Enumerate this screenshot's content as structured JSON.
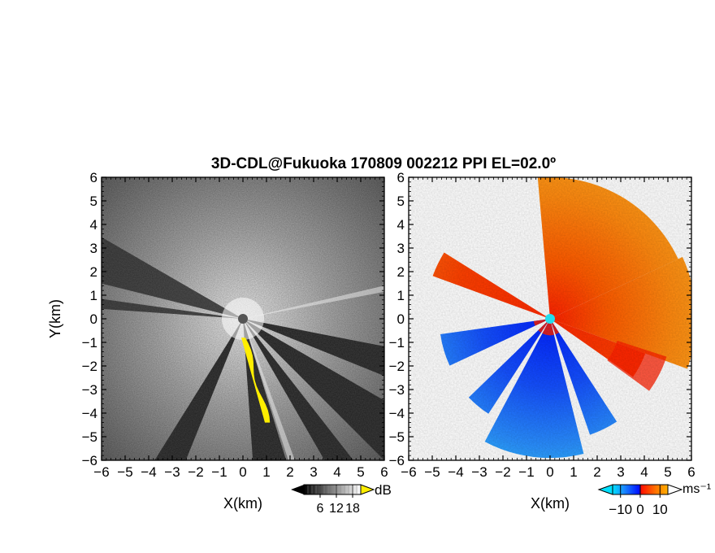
{
  "title": "3D-CDL@Fukuoka 170809 002212 PPI EL=02.0º",
  "colors": {
    "background": "#ffffff",
    "snr_dark": "#1e1e1e",
    "snr_bright": "#f0f0f0",
    "snr_flag": "#ffee00",
    "vel_neg_far": "#00c8ff",
    "vel_neg": "#1e64ff",
    "vel_neg_near": "#0028ff",
    "vel_pos_near": "#ff2000",
    "vel_pos": "#ff6400",
    "vel_pos_far": "#ffb400",
    "origin_snr": "#555555",
    "origin_vel": "#22ddee"
  },
  "chart_data": [
    {
      "type": "heatmap",
      "panel": "left",
      "field": "signal-to-noise ratio",
      "xlabel": "X(km)",
      "ylabel": "Y(km)",
      "xlim": [
        -6,
        6
      ],
      "ylim": [
        -6,
        6
      ],
      "xticks": [
        "−6",
        "−5",
        "−4",
        "−3",
        "−2",
        "−1",
        "0",
        "1",
        "2",
        "3",
        "4",
        "5",
        "6"
      ],
      "yticks": [
        "6",
        "5",
        "4",
        "3",
        "2",
        "1",
        "0",
        "−1",
        "−2",
        "−3",
        "−4",
        "−5",
        "−6"
      ],
      "colorbar": {
        "unit": "dB",
        "ticks": [
          "6",
          "12",
          "18"
        ],
        "range": [
          0,
          21
        ]
      },
      "blocked_sectors_deg": [
        [
          -86,
          -73
        ],
        [
          -60,
          -52
        ],
        [
          -45,
          -30
        ],
        [
          -122,
          -112
        ],
        [
          -22,
          -11
        ]
      ],
      "bright_streaks_deg": [
        12,
        -71
      ],
      "flagged_edge": {
        "color": "yellow",
        "from_x_km": 0.0,
        "from_y_km": -0.8,
        "to_x_km": 1.0,
        "to_y_km": -4.4
      }
    },
    {
      "type": "heatmap",
      "panel": "right",
      "field": "radial velocity",
      "xlabel": "X(km)",
      "ylabel": "",
      "xlim": [
        -6,
        6
      ],
      "ylim": [
        -6,
        6
      ],
      "xticks": [
        "−6",
        "−5",
        "−4",
        "−3",
        "−2",
        "−1",
        "0",
        "1",
        "2",
        "3",
        "4",
        "5",
        "6"
      ],
      "yticks": [
        "6",
        "5",
        "4",
        "3",
        "2",
        "1",
        "0",
        "−1",
        "−2",
        "−3",
        "−4",
        "−5",
        "−6"
      ],
      "colorbar": {
        "unit": "ms⁻¹",
        "ticks": [
          "−10",
          "0",
          "10"
        ],
        "range": [
          -14,
          14
        ]
      },
      "sectors": [
        {
          "az_from": -5,
          "az_to": 65,
          "max_range_km": 6.0,
          "velocity": "positive"
        },
        {
          "az_from": 65,
          "az_to": 110,
          "max_range_km": 6.2,
          "velocity": "positive"
        },
        {
          "az_from": 110,
          "az_to": 125,
          "max_range_km": 4.3,
          "velocity": "mixed"
        },
        {
          "az_from": 147,
          "az_to": 161,
          "max_range_km": 5.2,
          "velocity": "negative"
        },
        {
          "az_from": 166,
          "az_to": 208,
          "max_range_km": 5.9,
          "velocity": "negative"
        },
        {
          "az_from": 213,
          "az_to": 226,
          "max_range_km": 4.8,
          "velocity": "negative"
        },
        {
          "az_from": 245,
          "az_to": 262,
          "max_range_km": 4.7,
          "velocity": "negative"
        },
        {
          "az_from": 290,
          "az_to": 302,
          "max_range_km": 5.3,
          "velocity": "mixed"
        }
      ]
    }
  ]
}
